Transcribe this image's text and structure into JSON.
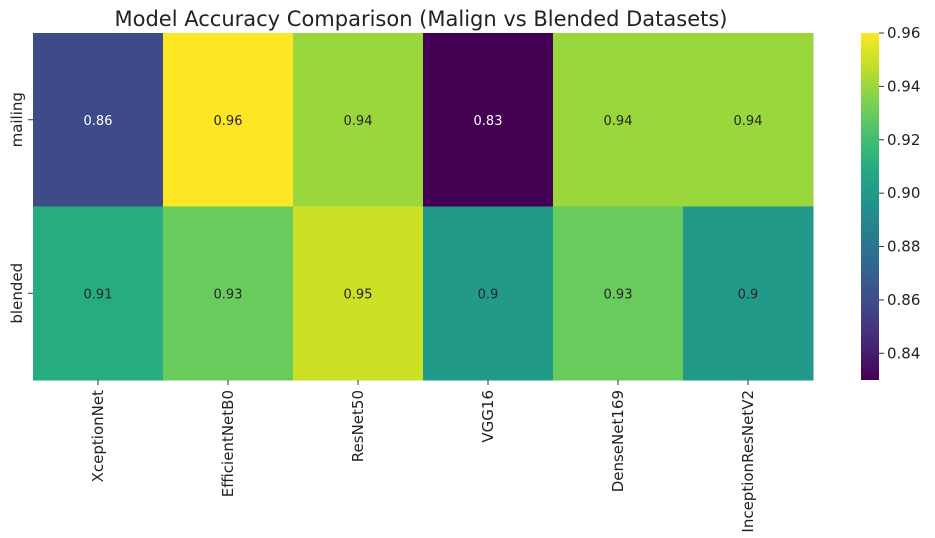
{
  "chart_data": {
    "type": "heatmap",
    "title": "Model Accuracy Comparison (Malign vs Blended Datasets)",
    "xlabel": "",
    "ylabel": "",
    "columns": [
      "XceptionNet",
      "EfficientNetB0",
      "ResNet50",
      "VGG16",
      "DenseNet169",
      "InceptionResNetV2"
    ],
    "rows": [
      "mailing",
      "blended"
    ],
    "values": [
      [
        0.86,
        0.96,
        0.94,
        0.83,
        0.94,
        0.94
      ],
      [
        0.91,
        0.93,
        0.95,
        0.9,
        0.93,
        0.9
      ]
    ],
    "annotations": [
      [
        "0.86",
        "0.96",
        "0.94",
        "0.83",
        "0.94",
        "0.94"
      ],
      [
        "0.91",
        "0.93",
        "0.95",
        "0.9",
        "0.93",
        "0.9"
      ]
    ],
    "colormap": "viridis",
    "vmin": 0.83,
    "vmax": 0.96,
    "colorbar": {
      "ticks": [
        0.84,
        0.86,
        0.88,
        0.9,
        0.92,
        0.94,
        0.96
      ],
      "tick_labels": [
        "0.84",
        "0.86",
        "0.88",
        "0.90",
        "0.92",
        "0.94",
        "0.96"
      ]
    },
    "grid": false,
    "legend": "colorbar-right"
  }
}
